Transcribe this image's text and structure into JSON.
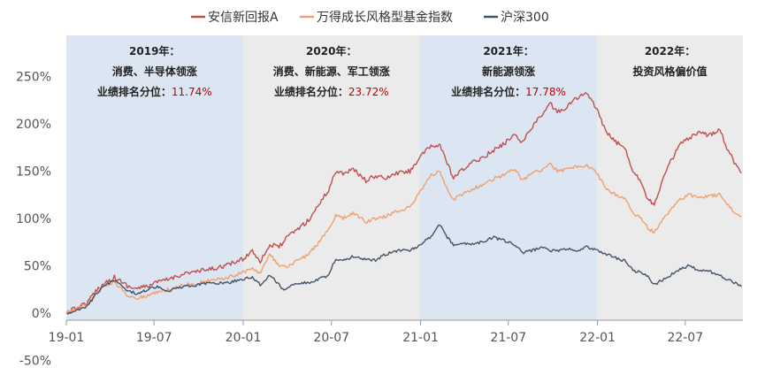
{
  "chart_data": {
    "type": "line",
    "title": "",
    "xlabel": "",
    "ylabel": "",
    "x_tick_labels": [
      "19-01",
      "19-07",
      "20-01",
      "20-07",
      "21-01",
      "21-07",
      "22-01",
      "22-07"
    ],
    "y_tick_labels": [
      "-50%",
      "0%",
      "50%",
      "100%",
      "150%",
      "200%",
      "250%"
    ],
    "ylim": [
      -50,
      270
    ],
    "y_unit": "%",
    "legend": "top-center",
    "grid": false,
    "series": [
      {
        "name": "安信新回报A",
        "color": "#c0504d",
        "points": [
          [
            "2019-01-02",
            0
          ],
          [
            "2019-01-20",
            5
          ],
          [
            "2019-02-15",
            12
          ],
          [
            "2019-03-05",
            25
          ],
          [
            "2019-03-25",
            33
          ],
          [
            "2019-04-10",
            38
          ],
          [
            "2019-04-25",
            33
          ],
          [
            "2019-05-10",
            28
          ],
          [
            "2019-05-25",
            26
          ],
          [
            "2019-06-15",
            28
          ],
          [
            "2019-07-05",
            32
          ],
          [
            "2019-08-01",
            36
          ],
          [
            "2019-09-01",
            42
          ],
          [
            "2019-10-01",
            44
          ],
          [
            "2019-11-01",
            47
          ],
          [
            "2019-12-01",
            51
          ],
          [
            "2019-12-31",
            57
          ],
          [
            "2020-01-20",
            66
          ],
          [
            "2020-02-05",
            55
          ],
          [
            "2020-02-25",
            72
          ],
          [
            "2020-03-15",
            70
          ],
          [
            "2020-04-01",
            80
          ],
          [
            "2020-04-20",
            88
          ],
          [
            "2020-05-15",
            98
          ],
          [
            "2020-06-05",
            115
          ],
          [
            "2020-06-25",
            130
          ],
          [
            "2020-07-10",
            150
          ],
          [
            "2020-07-25",
            148
          ],
          [
            "2020-08-15",
            152
          ],
          [
            "2020-09-10",
            140
          ],
          [
            "2020-09-30",
            145
          ],
          [
            "2020-10-20",
            142
          ],
          [
            "2020-11-15",
            148
          ],
          [
            "2020-12-10",
            150
          ],
          [
            "2020-12-31",
            165
          ],
          [
            "2021-01-20",
            175
          ],
          [
            "2021-02-10",
            178
          ],
          [
            "2021-02-25",
            158
          ],
          [
            "2021-03-10",
            142
          ],
          [
            "2021-03-25",
            150
          ],
          [
            "2021-04-15",
            158
          ],
          [
            "2021-05-10",
            165
          ],
          [
            "2021-06-01",
            172
          ],
          [
            "2021-06-25",
            180
          ],
          [
            "2021-07-15",
            190
          ],
          [
            "2021-07-30",
            180
          ],
          [
            "2021-08-20",
            198
          ],
          [
            "2021-09-10",
            210
          ],
          [
            "2021-09-25",
            222
          ],
          [
            "2021-10-10",
            212
          ],
          [
            "2021-10-30",
            218
          ],
          [
            "2021-11-20",
            228
          ],
          [
            "2021-12-10",
            232
          ],
          [
            "2021-12-31",
            215
          ],
          [
            "2022-01-20",
            190
          ],
          [
            "2022-02-10",
            180
          ],
          [
            "2022-03-01",
            172
          ],
          [
            "2022-03-15",
            150
          ],
          [
            "2022-04-01",
            140
          ],
          [
            "2022-04-15",
            120
          ],
          [
            "2022-04-28",
            115
          ],
          [
            "2022-05-15",
            140
          ],
          [
            "2022-06-01",
            160
          ],
          [
            "2022-06-20",
            178
          ],
          [
            "2022-07-10",
            185
          ],
          [
            "2022-07-30",
            190
          ],
          [
            "2022-08-20",
            188
          ],
          [
            "2022-09-10",
            195
          ],
          [
            "2022-09-25",
            175
          ],
          [
            "2022-10-10",
            160
          ],
          [
            "2022-10-25",
            148
          ]
        ]
      },
      {
        "name": "万得成长风格型基金指数",
        "color": "#f0a070",
        "points": [
          [
            "2019-01-02",
            0
          ],
          [
            "2019-01-20",
            4
          ],
          [
            "2019-02-15",
            10
          ],
          [
            "2019-03-05",
            22
          ],
          [
            "2019-03-25",
            30
          ],
          [
            "2019-04-10",
            33
          ],
          [
            "2019-04-25",
            25
          ],
          [
            "2019-05-10",
            18
          ],
          [
            "2019-05-25",
            16
          ],
          [
            "2019-06-15",
            18
          ],
          [
            "2019-07-05",
            22
          ],
          [
            "2019-08-01",
            25
          ],
          [
            "2019-09-01",
            30
          ],
          [
            "2019-10-01",
            32
          ],
          [
            "2019-11-01",
            35
          ],
          [
            "2019-12-01",
            38
          ],
          [
            "2019-12-31",
            43
          ],
          [
            "2020-01-20",
            48
          ],
          [
            "2020-02-05",
            42
          ],
          [
            "2020-02-25",
            62
          ],
          [
            "2020-03-15",
            50
          ],
          [
            "2020-04-01",
            48
          ],
          [
            "2020-04-20",
            55
          ],
          [
            "2020-05-15",
            62
          ],
          [
            "2020-06-05",
            75
          ],
          [
            "2020-06-25",
            88
          ],
          [
            "2020-07-10",
            103
          ],
          [
            "2020-07-25",
            100
          ],
          [
            "2020-08-15",
            106
          ],
          [
            "2020-09-10",
            96
          ],
          [
            "2020-09-30",
            100
          ],
          [
            "2020-10-20",
            102
          ],
          [
            "2020-11-15",
            108
          ],
          [
            "2020-12-10",
            112
          ],
          [
            "2020-12-31",
            128
          ],
          [
            "2021-01-20",
            145
          ],
          [
            "2021-02-10",
            150
          ],
          [
            "2021-02-25",
            130
          ],
          [
            "2021-03-10",
            120
          ],
          [
            "2021-03-25",
            125
          ],
          [
            "2021-04-15",
            130
          ],
          [
            "2021-05-10",
            136
          ],
          [
            "2021-06-01",
            142
          ],
          [
            "2021-06-25",
            147
          ],
          [
            "2021-07-15",
            152
          ],
          [
            "2021-07-30",
            140
          ],
          [
            "2021-08-20",
            148
          ],
          [
            "2021-09-10",
            152
          ],
          [
            "2021-09-25",
            158
          ],
          [
            "2021-10-10",
            150
          ],
          [
            "2021-10-30",
            152
          ],
          [
            "2021-11-20",
            155
          ],
          [
            "2021-12-10",
            156
          ],
          [
            "2021-12-31",
            148
          ],
          [
            "2022-01-20",
            130
          ],
          [
            "2022-02-10",
            125
          ],
          [
            "2022-03-01",
            120
          ],
          [
            "2022-03-15",
            105
          ],
          [
            "2022-04-01",
            100
          ],
          [
            "2022-04-15",
            90
          ],
          [
            "2022-04-28",
            85
          ],
          [
            "2022-05-15",
            98
          ],
          [
            "2022-06-01",
            110
          ],
          [
            "2022-06-20",
            120
          ],
          [
            "2022-07-10",
            125
          ],
          [
            "2022-07-30",
            122
          ],
          [
            "2022-08-20",
            124
          ],
          [
            "2022-09-10",
            125
          ],
          [
            "2022-09-25",
            115
          ],
          [
            "2022-10-10",
            106
          ],
          [
            "2022-10-25",
            102
          ]
        ]
      },
      {
        "name": "沪深300",
        "color": "#44546a",
        "points": [
          [
            "2019-01-02",
            0
          ],
          [
            "2019-01-20",
            3
          ],
          [
            "2019-02-15",
            8
          ],
          [
            "2019-03-05",
            22
          ],
          [
            "2019-03-25",
            30
          ],
          [
            "2019-04-10",
            35
          ],
          [
            "2019-04-25",
            30
          ],
          [
            "2019-05-10",
            23
          ],
          [
            "2019-05-25",
            21
          ],
          [
            "2019-06-15",
            24
          ],
          [
            "2019-07-05",
            28
          ],
          [
            "2019-08-01",
            24
          ],
          [
            "2019-09-01",
            28
          ],
          [
            "2019-10-01",
            30
          ],
          [
            "2019-11-01",
            32
          ],
          [
            "2019-12-01",
            32
          ],
          [
            "2019-12-31",
            36
          ],
          [
            "2020-01-20",
            38
          ],
          [
            "2020-02-05",
            30
          ],
          [
            "2020-02-25",
            40
          ],
          [
            "2020-03-15",
            30
          ],
          [
            "2020-03-25",
            25
          ],
          [
            "2020-04-20",
            32
          ],
          [
            "2020-05-15",
            32
          ],
          [
            "2020-06-05",
            36
          ],
          [
            "2020-06-25",
            40
          ],
          [
            "2020-07-10",
            58
          ],
          [
            "2020-07-25",
            55
          ],
          [
            "2020-08-15",
            60
          ],
          [
            "2020-09-10",
            57
          ],
          [
            "2020-09-30",
            56
          ],
          [
            "2020-10-20",
            62
          ],
          [
            "2020-11-15",
            66
          ],
          [
            "2020-12-10",
            66
          ],
          [
            "2020-12-31",
            72
          ],
          [
            "2021-01-20",
            80
          ],
          [
            "2021-02-10",
            94
          ],
          [
            "2021-02-25",
            80
          ],
          [
            "2021-03-10",
            72
          ],
          [
            "2021-03-25",
            74
          ],
          [
            "2021-04-15",
            72
          ],
          [
            "2021-05-10",
            76
          ],
          [
            "2021-06-01",
            80
          ],
          [
            "2021-06-25",
            76
          ],
          [
            "2021-07-15",
            72
          ],
          [
            "2021-07-30",
            64
          ],
          [
            "2021-08-20",
            66
          ],
          [
            "2021-09-10",
            70
          ],
          [
            "2021-09-25",
            66
          ],
          [
            "2021-10-10",
            66
          ],
          [
            "2021-10-30",
            68
          ],
          [
            "2021-11-20",
            66
          ],
          [
            "2021-12-10",
            70
          ],
          [
            "2021-12-31",
            66
          ],
          [
            "2022-01-20",
            62
          ],
          [
            "2022-02-10",
            58
          ],
          [
            "2022-03-01",
            55
          ],
          [
            "2022-03-15",
            45
          ],
          [
            "2022-04-01",
            43
          ],
          [
            "2022-04-15",
            38
          ],
          [
            "2022-04-28",
            30
          ],
          [
            "2022-05-15",
            35
          ],
          [
            "2022-06-01",
            40
          ],
          [
            "2022-06-20",
            47
          ],
          [
            "2022-07-10",
            50
          ],
          [
            "2022-07-30",
            45
          ],
          [
            "2022-08-20",
            44
          ],
          [
            "2022-09-10",
            40
          ],
          [
            "2022-09-25",
            36
          ],
          [
            "2022-10-10",
            32
          ],
          [
            "2022-10-25",
            28
          ]
        ]
      }
    ],
    "periods": [
      {
        "start": "2019-01-01",
        "end": "2019-12-31",
        "color": "#dce6f2",
        "lines": [
          "2019年：",
          "消费、半导体领涨",
          "业绩排名分位：|11.74%"
        ]
      },
      {
        "start": "2019-12-31",
        "end": "2020-12-31",
        "color": "#ebebeb",
        "lines": [
          "2020年：",
          "消费、新能源、军工领涨",
          "业绩排名分位：|23.72%"
        ]
      },
      {
        "start": "2020-12-31",
        "end": "2021-12-31",
        "color": "#dce6f2",
        "lines": [
          "2021年：",
          "新能源领涨",
          "业绩排名分位：|17.78%"
        ]
      },
      {
        "start": "2021-12-31",
        "end": "2022-10-28",
        "color": "#ebebeb",
        "lines": [
          "2022年：",
          "投资风格偏价值"
        ]
      }
    ]
  }
}
